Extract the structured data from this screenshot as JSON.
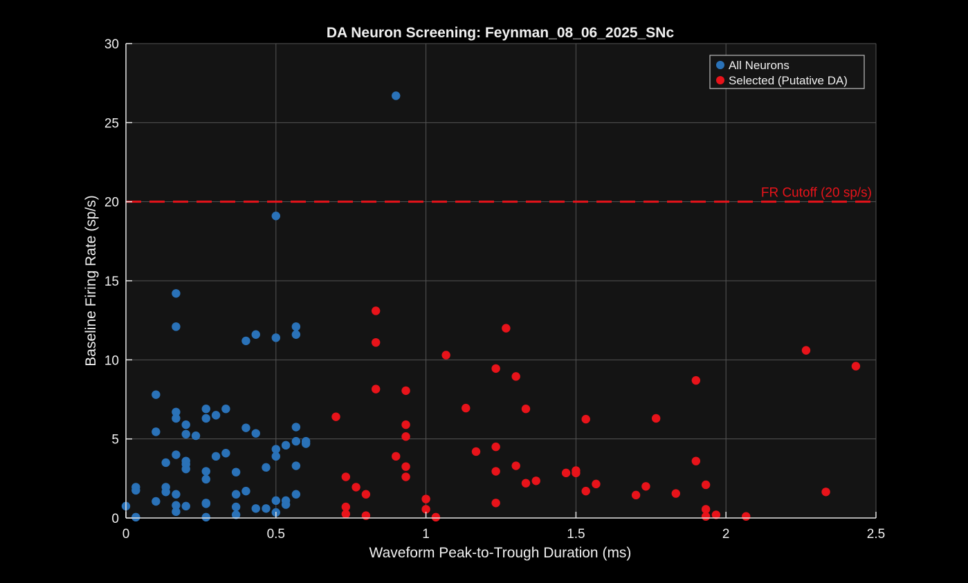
{
  "chart_data": {
    "type": "scatter",
    "title": "DA Neuron Screening: Feynman_08_06_2025_SNc",
    "xlabel": "Waveform Peak-to-Trough Duration (ms)",
    "ylabel": "Baseline Firing Rate (sp/s)",
    "xlim": [
      0,
      2.5
    ],
    "ylim": [
      0,
      30
    ],
    "xticks": [
      0,
      0.5,
      1,
      1.5,
      2,
      2.5
    ],
    "xtick_labels": [
      "0",
      "0.5",
      "1",
      "1.5",
      "2",
      "2.5"
    ],
    "yticks": [
      0,
      5,
      10,
      15,
      20,
      25,
      30
    ],
    "ytick_labels": [
      "0",
      "5",
      "10",
      "15",
      "20",
      "25",
      "30"
    ],
    "grid": true,
    "legend_position": "top-right",
    "colors": {
      "background": "#000000",
      "axes_background": "#141414",
      "grid": "#555555",
      "text": "#f0f0f0",
      "all_neurons": "#2a72b8",
      "selected": "#e8131a",
      "cutoff": "#e8131a"
    },
    "reference_line": {
      "y": 20,
      "label": "FR Cutoff (20 sp/s)",
      "style": "dashed"
    },
    "series": [
      {
        "name": "All Neurons",
        "points": [
          [
            0.9,
            26.7
          ],
          [
            0.5,
            19.1
          ],
          [
            0.167,
            14.2
          ],
          [
            0.167,
            12.1
          ],
          [
            0.567,
            12.1
          ],
          [
            0.433,
            11.6
          ],
          [
            0.567,
            11.6
          ],
          [
            0.4,
            11.2
          ],
          [
            0.5,
            11.4
          ],
          [
            0.1,
            7.8
          ],
          [
            0.167,
            6.7
          ],
          [
            0.267,
            6.9
          ],
          [
            0.333,
            6.9
          ],
          [
            0.167,
            6.3
          ],
          [
            0.267,
            6.3
          ],
          [
            0.3,
            6.5
          ],
          [
            0.2,
            5.9
          ],
          [
            0.4,
            5.7
          ],
          [
            0.567,
            5.75
          ],
          [
            0.1,
            5.45
          ],
          [
            0.2,
            5.3
          ],
          [
            0.233,
            5.2
          ],
          [
            0.433,
            5.35
          ],
          [
            0.567,
            4.85
          ],
          [
            0.6,
            4.85
          ],
          [
            0.6,
            4.7
          ],
          [
            0.533,
            4.6
          ],
          [
            0.5,
            4.35
          ],
          [
            0.167,
            4.0
          ],
          [
            0.333,
            4.1
          ],
          [
            0.3,
            3.9
          ],
          [
            0.5,
            3.9
          ],
          [
            0.133,
            3.5
          ],
          [
            0.2,
            3.6
          ],
          [
            0.2,
            3.4
          ],
          [
            0.2,
            3.1
          ],
          [
            0.567,
            3.3
          ],
          [
            0.467,
            3.2
          ],
          [
            0.267,
            2.95
          ],
          [
            0.367,
            2.9
          ],
          [
            0.267,
            2.45
          ],
          [
            0.133,
            1.95
          ],
          [
            0.033,
            1.95
          ],
          [
            0.033,
            1.75
          ],
          [
            0.133,
            1.65
          ],
          [
            0.4,
            1.7
          ],
          [
            0.167,
            1.5
          ],
          [
            0.367,
            1.5
          ],
          [
            0.567,
            1.5
          ],
          [
            0.1,
            1.05
          ],
          [
            0.267,
            0.95
          ],
          [
            0.267,
            0.9
          ],
          [
            0.5,
            1.1
          ],
          [
            0.533,
            1.1
          ],
          [
            0.533,
            0.85
          ],
          [
            0.0,
            0.75
          ],
          [
            0.167,
            0.8
          ],
          [
            0.2,
            0.75
          ],
          [
            0.367,
            0.7
          ],
          [
            0.433,
            0.6
          ],
          [
            0.467,
            0.6
          ],
          [
            0.167,
            0.4
          ],
          [
            0.367,
            0.2
          ],
          [
            0.5,
            0.35
          ],
          [
            0.033,
            0.05
          ],
          [
            0.267,
            0.05
          ]
        ]
      },
      {
        "name": "Selected (Putative DA)",
        "points": [
          [
            0.833,
            13.1
          ],
          [
            0.833,
            11.1
          ],
          [
            1.267,
            12.0
          ],
          [
            1.067,
            10.3
          ],
          [
            1.233,
            9.45
          ],
          [
            1.3,
            8.95
          ],
          [
            2.267,
            10.6
          ],
          [
            2.433,
            9.6
          ],
          [
            1.9,
            8.7
          ],
          [
            0.833,
            8.15
          ],
          [
            0.933,
            8.05
          ],
          [
            1.133,
            6.95
          ],
          [
            1.333,
            6.9
          ],
          [
            1.533,
            6.25
          ],
          [
            1.767,
            6.3
          ],
          [
            0.7,
            6.4
          ],
          [
            0.933,
            5.9
          ],
          [
            0.933,
            5.15
          ],
          [
            1.233,
            4.5
          ],
          [
            1.167,
            4.2
          ],
          [
            0.9,
            3.9
          ],
          [
            1.9,
            3.6
          ],
          [
            1.3,
            3.3
          ],
          [
            0.933,
            3.25
          ],
          [
            1.233,
            2.95
          ],
          [
            1.5,
            3.0
          ],
          [
            1.5,
            2.85
          ],
          [
            1.467,
            2.85
          ],
          [
            0.733,
            2.6
          ],
          [
            0.933,
            2.6
          ],
          [
            1.367,
            2.35
          ],
          [
            1.333,
            2.2
          ],
          [
            1.567,
            2.15
          ],
          [
            1.933,
            2.1
          ],
          [
            1.733,
            2.0
          ],
          [
            0.767,
            1.95
          ],
          [
            1.533,
            1.7
          ],
          [
            2.333,
            1.65
          ],
          [
            0.8,
            1.5
          ],
          [
            1.7,
            1.45
          ],
          [
            1.833,
            1.55
          ],
          [
            1.0,
            1.2
          ],
          [
            1.233,
            0.95
          ],
          [
            0.733,
            0.7
          ],
          [
            1.0,
            0.55
          ],
          [
            1.933,
            0.55
          ],
          [
            0.733,
            0.25
          ],
          [
            0.8,
            0.15
          ],
          [
            1.033,
            0.05
          ],
          [
            1.933,
            0.1
          ],
          [
            1.967,
            0.2
          ],
          [
            2.067,
            0.1
          ]
        ]
      }
    ]
  }
}
